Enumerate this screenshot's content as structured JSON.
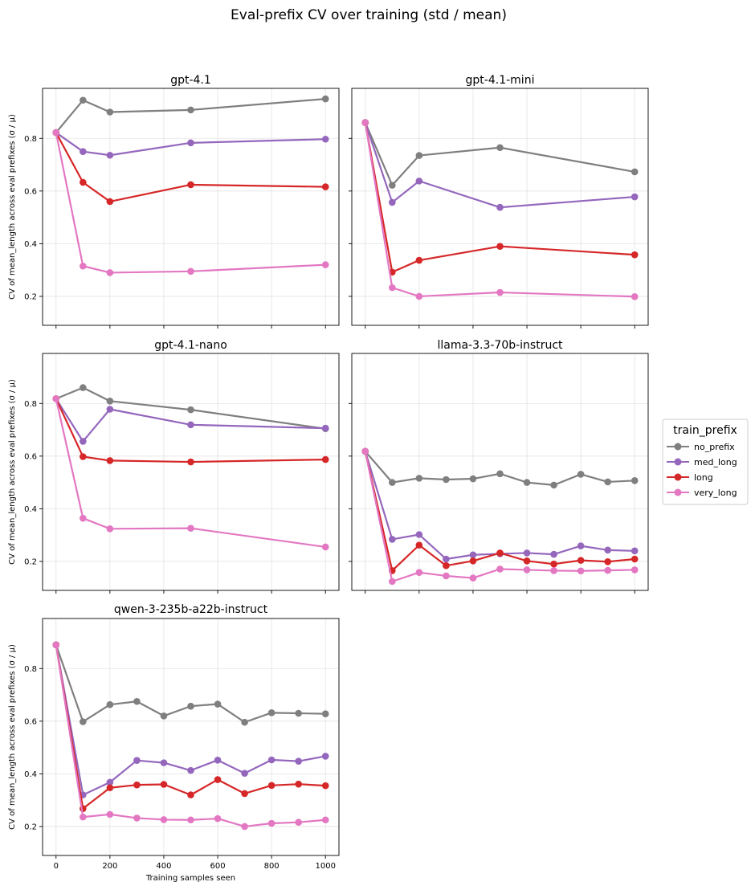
{
  "figure": {
    "suptitle": "Eval-prefix CV over training (std / mean)",
    "xlabel": "Training samples seen",
    "ylabel": "CV of mean_length across eval prefixes (σ / μ)"
  },
  "legend": {
    "title": "train_prefix",
    "entries": [
      "no_prefix",
      "med_long",
      "long",
      "very_long"
    ],
    "location": "right"
  },
  "colors": {
    "no_prefix": "#7f7f7f",
    "med_long": "#9467bd",
    "long": "#d62728",
    "very_long": "#e377c2"
  },
  "chart_data": [
    {
      "type": "line",
      "title": "gpt-4.1",
      "xlim": [
        -50,
        1050
      ],
      "ylim": [
        0.09,
        0.99
      ],
      "xticks": [
        0,
        200,
        400,
        600,
        800,
        1000
      ],
      "yticks": [
        0.2,
        0.4,
        0.6,
        0.8
      ],
      "show_xticklabels": false,
      "show_yticklabels": true,
      "x": [
        0,
        100,
        200,
        500,
        1000
      ],
      "series": [
        {
          "name": "no_prefix",
          "values": [
            0.822,
            0.945,
            0.9,
            0.908,
            0.95
          ]
        },
        {
          "name": "med_long",
          "values": [
            0.822,
            0.75,
            0.736,
            0.783,
            0.797
          ]
        },
        {
          "name": "long",
          "values": [
            0.822,
            0.633,
            0.56,
            0.624,
            0.616
          ]
        },
        {
          "name": "very_long",
          "values": [
            0.822,
            0.315,
            0.29,
            0.295,
            0.32
          ]
        }
      ]
    },
    {
      "type": "line",
      "title": "gpt-4.1-mini",
      "xlim": [
        -50,
        1050
      ],
      "ylim": [
        0.09,
        0.99
      ],
      "xticks": [
        0,
        200,
        400,
        600,
        800,
        1000
      ],
      "yticks": [
        0.2,
        0.4,
        0.6,
        0.8
      ],
      "show_xticklabels": false,
      "show_yticklabels": false,
      "x": [
        0,
        100,
        200,
        500,
        1000
      ],
      "series": [
        {
          "name": "no_prefix",
          "values": [
            0.86,
            0.622,
            0.735,
            0.765,
            0.673
          ]
        },
        {
          "name": "med_long",
          "values": [
            0.86,
            0.557,
            0.638,
            0.538,
            0.578
          ]
        },
        {
          "name": "long",
          "values": [
            0.86,
            0.292,
            0.337,
            0.39,
            0.358
          ]
        },
        {
          "name": "very_long",
          "values": [
            0.86,
            0.233,
            0.2,
            0.215,
            0.199
          ]
        }
      ]
    },
    {
      "type": "line",
      "title": "gpt-4.1-nano",
      "xlim": [
        -50,
        1050
      ],
      "ylim": [
        0.09,
        0.99
      ],
      "xticks": [
        0,
        200,
        400,
        600,
        800,
        1000
      ],
      "yticks": [
        0.2,
        0.4,
        0.6,
        0.8
      ],
      "show_xticklabels": false,
      "show_yticklabels": true,
      "x": [
        0,
        100,
        200,
        500,
        1000
      ],
      "series": [
        {
          "name": "no_prefix",
          "values": [
            0.818,
            0.86,
            0.809,
            0.776,
            0.704
          ]
        },
        {
          "name": "med_long",
          "values": [
            0.818,
            0.656,
            0.778,
            0.719,
            0.706
          ]
        },
        {
          "name": "long",
          "values": [
            0.818,
            0.598,
            0.583,
            0.578,
            0.587
          ]
        },
        {
          "name": "very_long",
          "values": [
            0.818,
            0.364,
            0.324,
            0.326,
            0.255
          ]
        }
      ]
    },
    {
      "type": "line",
      "title": "llama-3.3-70b-instruct",
      "xlim": [
        -50,
        1050
      ],
      "ylim": [
        0.09,
        0.99
      ],
      "xticks": [
        0,
        200,
        400,
        600,
        800,
        1000
      ],
      "yticks": [
        0.2,
        0.4,
        0.6,
        0.8
      ],
      "show_xticklabels": false,
      "show_yticklabels": false,
      "x": [
        0,
        100,
        200,
        300,
        400,
        500,
        600,
        700,
        800,
        900,
        1000
      ],
      "series": [
        {
          "name": "no_prefix",
          "values": [
            0.618,
            0.5,
            0.516,
            0.511,
            0.514,
            0.533,
            0.5,
            0.49,
            0.531,
            0.502,
            0.507
          ]
        },
        {
          "name": "med_long",
          "values": [
            0.618,
            0.284,
            0.302,
            0.209,
            0.225,
            0.229,
            0.232,
            0.227,
            0.259,
            0.243,
            0.24
          ]
        },
        {
          "name": "long",
          "values": [
            0.618,
            0.165,
            0.262,
            0.184,
            0.202,
            0.232,
            0.202,
            0.19,
            0.204,
            0.199,
            0.209
          ]
        },
        {
          "name": "very_long",
          "values": [
            0.618,
            0.124,
            0.158,
            0.145,
            0.137,
            0.171,
            0.168,
            0.165,
            0.164,
            0.166,
            0.168
          ]
        }
      ]
    },
    {
      "type": "line",
      "title": "qwen-3-235b-a22b-instruct",
      "xlim": [
        -50,
        1050
      ],
      "ylim": [
        0.09,
        0.99
      ],
      "xticks": [
        0,
        200,
        400,
        600,
        800,
        1000
      ],
      "xticklabels": [
        "0",
        "200",
        "400",
        "600",
        "800",
        "1000"
      ],
      "yticks": [
        0.2,
        0.4,
        0.6,
        0.8
      ],
      "show_xticklabels": true,
      "show_yticklabels": true,
      "x": [
        0,
        100,
        200,
        300,
        400,
        500,
        600,
        700,
        800,
        900,
        1000
      ],
      "series": [
        {
          "name": "no_prefix",
          "values": [
            0.89,
            0.598,
            0.663,
            0.675,
            0.62,
            0.657,
            0.665,
            0.596,
            0.632,
            0.63,
            0.628
          ]
        },
        {
          "name": "med_long",
          "values": [
            0.89,
            0.32,
            0.368,
            0.451,
            0.442,
            0.413,
            0.452,
            0.402,
            0.453,
            0.448,
            0.467
          ]
        },
        {
          "name": "long",
          "values": [
            0.89,
            0.268,
            0.347,
            0.358,
            0.36,
            0.32,
            0.378,
            0.325,
            0.356,
            0.361,
            0.355
          ]
        },
        {
          "name": "very_long",
          "values": [
            0.89,
            0.236,
            0.246,
            0.232,
            0.226,
            0.225,
            0.23,
            0.2,
            0.212,
            0.216,
            0.225
          ]
        }
      ]
    }
  ]
}
